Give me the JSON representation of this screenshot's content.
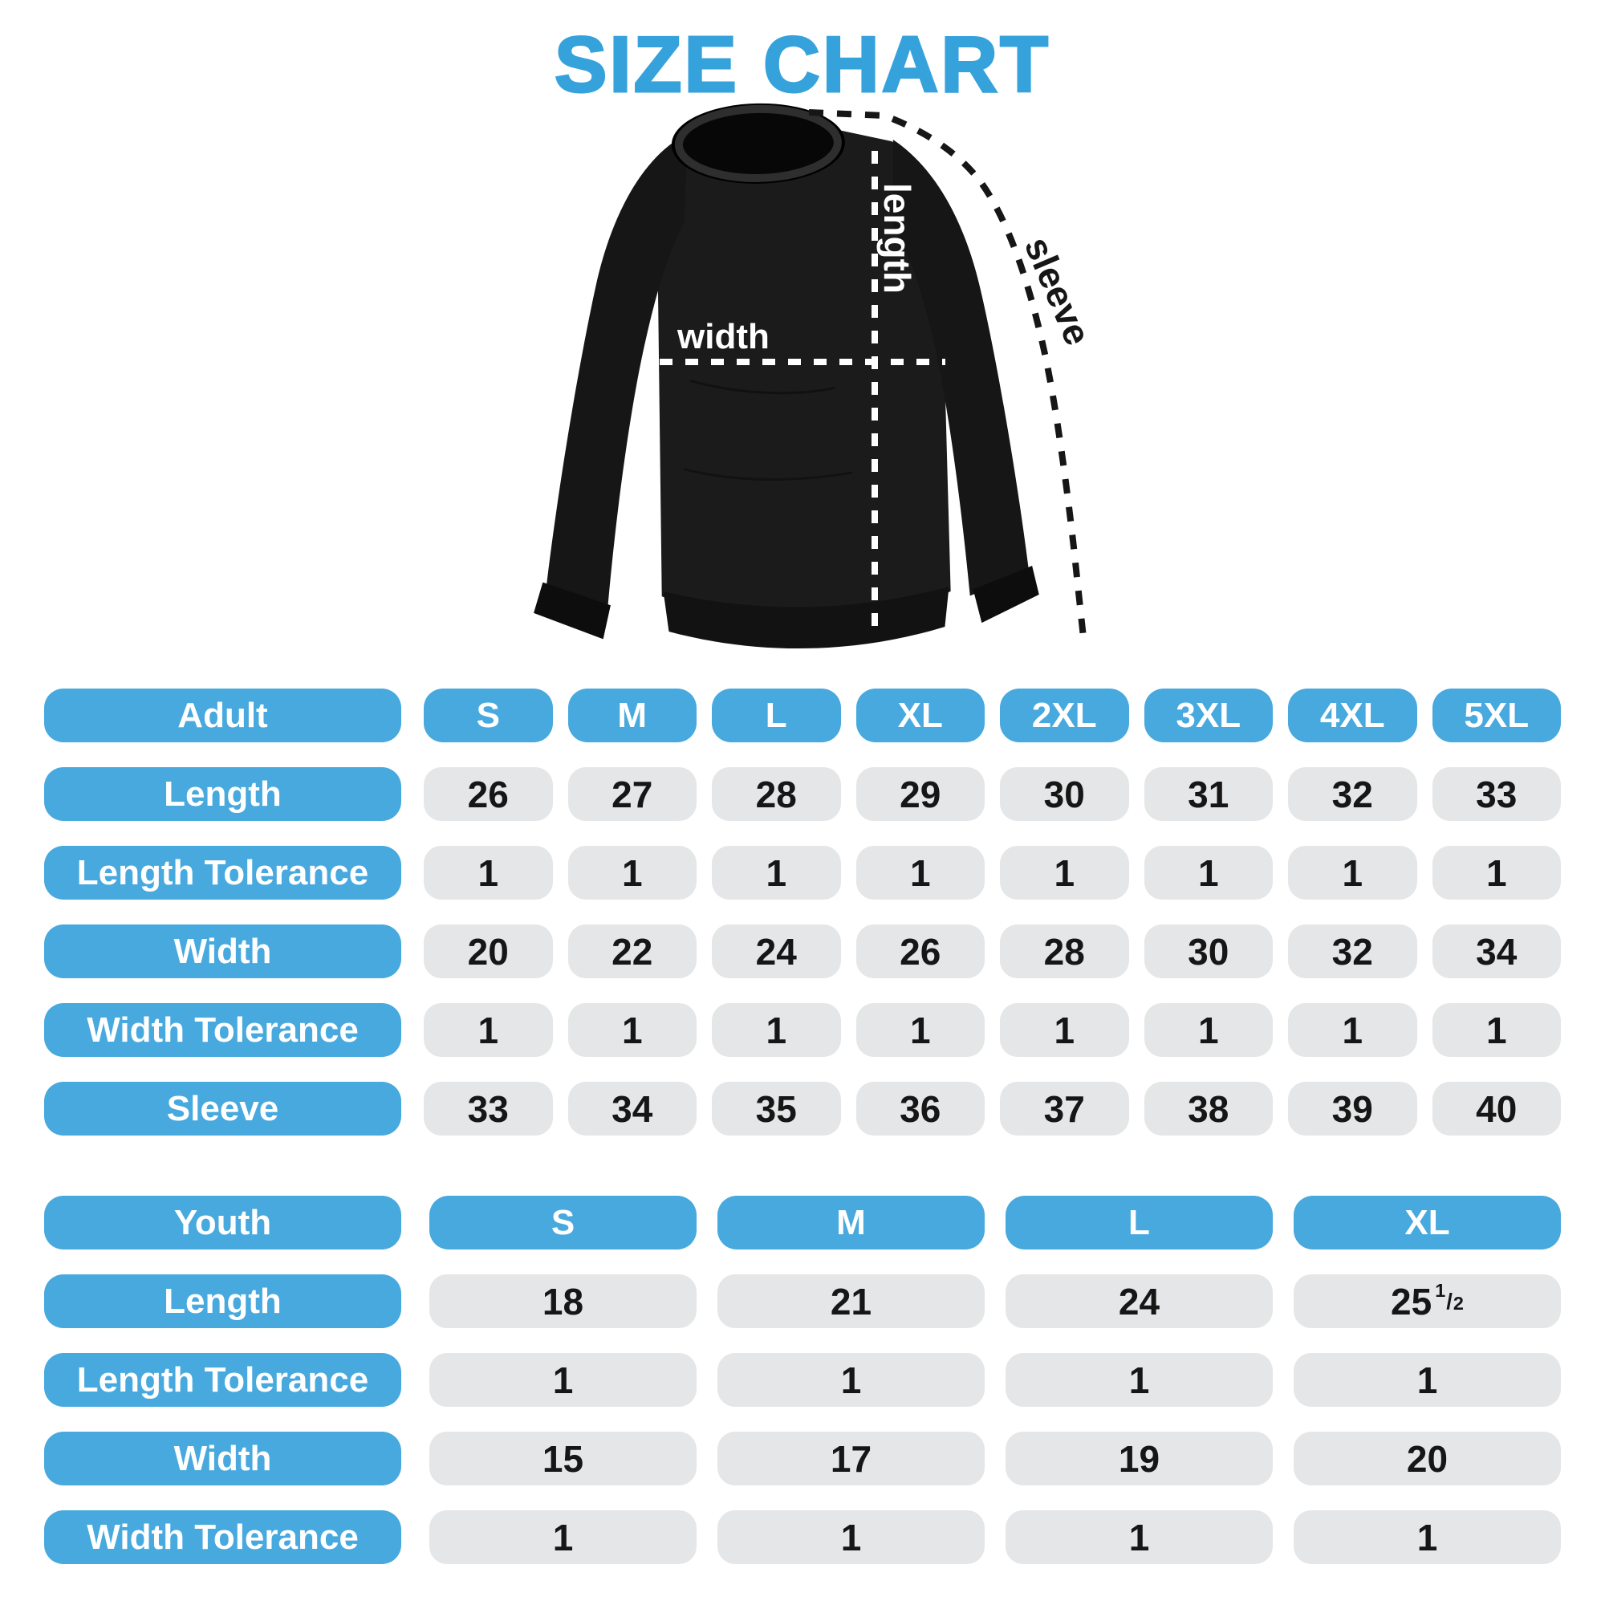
{
  "title": "SIZE CHART",
  "colors": {
    "accent_blue": "#47A9DE",
    "title_blue": "#36A2DB",
    "cell_gray": "#E5E6E7",
    "value_text": "#161616",
    "pill_text": "#FFFFFF",
    "garment_black": "#1B1B1B",
    "measure_line_white": "#FFFFFF",
    "sleeve_line_black": "#161616"
  },
  "diagram": {
    "garment": "crewneck-sweatshirt",
    "labels": {
      "length": "length",
      "width": "width",
      "sleeve": "sleeve"
    }
  },
  "adult_table": {
    "header": {
      "label": "Adult",
      "sizes": [
        "S",
        "M",
        "L",
        "XL",
        "2XL",
        "3XL",
        "4XL",
        "5XL"
      ]
    },
    "rows": [
      {
        "label": "Length",
        "values": [
          "26",
          "27",
          "28",
          "29",
          "30",
          "31",
          "32",
          "33"
        ]
      },
      {
        "label": "Length Tolerance",
        "values": [
          "1",
          "1",
          "1",
          "1",
          "1",
          "1",
          "1",
          "1"
        ]
      },
      {
        "label": "Width",
        "values": [
          "20",
          "22",
          "24",
          "26",
          "28",
          "30",
          "32",
          "34"
        ]
      },
      {
        "label": "Width Tolerance",
        "values": [
          "1",
          "1",
          "1",
          "1",
          "1",
          "1",
          "1",
          "1"
        ]
      },
      {
        "label": "Sleeve",
        "values": [
          "33",
          "34",
          "35",
          "36",
          "37",
          "38",
          "39",
          "40"
        ]
      }
    ]
  },
  "youth_table": {
    "header": {
      "label": "Youth",
      "sizes": [
        "S",
        "M",
        "L",
        "XL"
      ]
    },
    "rows": [
      {
        "label": "Length",
        "values": [
          "18",
          "21",
          "24",
          "25 1/2"
        ]
      },
      {
        "label": "Length Tolerance",
        "values": [
          "1",
          "1",
          "1",
          "1"
        ]
      },
      {
        "label": "Width",
        "values": [
          "15",
          "17",
          "19",
          "20"
        ]
      },
      {
        "label": "Width Tolerance",
        "values": [
          "1",
          "1",
          "1",
          "1"
        ]
      }
    ]
  }
}
